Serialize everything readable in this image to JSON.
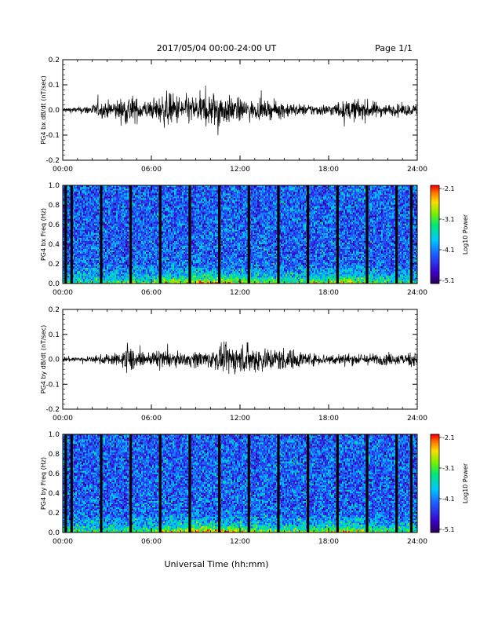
{
  "header": {
    "title": "2017/05/04  00:00-24:00 UT",
    "page": "Page 1/1"
  },
  "footer": {
    "xlabel": "Universal Time (hh:mm)"
  },
  "colors": {
    "line": "#000000",
    "background": "#ffffff",
    "spectrogram_low": "#1f3fb8",
    "spectrogram_high": "#ff0000"
  },
  "chart_data": [
    {
      "type": "line",
      "ylabel": "PG4 bx dB/dt (nT/sec)",
      "x_unit": "hh:mm",
      "xlim": [
        "00:00",
        "24:00"
      ],
      "x_ticks": [
        "00:00",
        "06:00",
        "12:00",
        "18:00",
        "24:00"
      ],
      "ylim": [
        -0.2,
        0.2
      ],
      "y_ticks": [
        "0.2",
        "0.1",
        "0.0",
        "-0.1",
        "-0.2"
      ],
      "series": [
        {
          "x_hours": [
            0,
            1,
            2,
            3,
            4,
            4.5,
            5,
            6,
            7,
            8,
            9,
            10,
            10.5,
            11,
            12,
            13,
            14,
            15,
            16,
            17,
            18,
            19,
            20,
            21,
            22,
            23,
            24
          ],
          "amplitude": [
            0.01,
            0.01,
            0.02,
            0.03,
            0.04,
            0.06,
            0.04,
            0.03,
            0.06,
            0.05,
            0.05,
            0.06,
            0.07,
            0.05,
            0.04,
            0.03,
            0.03,
            0.03,
            0.02,
            0.02,
            0.02,
            0.03,
            0.04,
            0.03,
            0.02,
            0.02,
            0.02
          ]
        }
      ]
    },
    {
      "type": "heatmap",
      "ylabel": "PG4 bx Freq (Hz)",
      "xlim": [
        "00:00",
        "24:00"
      ],
      "x_ticks": [
        "00:00",
        "06:00",
        "12:00",
        "18:00",
        "24:00"
      ],
      "ylim": [
        0.0,
        1.0
      ],
      "y_ticks": [
        "1.0",
        "0.8",
        "0.6",
        "0.4",
        "0.2",
        "0.0"
      ],
      "colorbar": {
        "label": "Log10 Power",
        "range": [
          -5.1,
          -2.1
        ],
        "ticks": [
          "-2.1",
          "-3.1",
          "-4.1",
          "-5.1"
        ]
      },
      "gap_hours": [
        0.2,
        0.6,
        2.6,
        4.6,
        6.6,
        8.6,
        10.6,
        12.6,
        14.6,
        16.6,
        18.6,
        20.6,
        22.6,
        23.6
      ]
    },
    {
      "type": "line",
      "ylabel": "PG4 by dB/dt (nT/sec)",
      "x_unit": "hh:mm",
      "xlim": [
        "00:00",
        "24:00"
      ],
      "x_ticks": [
        "00:00",
        "06:00",
        "12:00",
        "18:00",
        "24:00"
      ],
      "ylim": [
        -0.2,
        0.2
      ],
      "y_ticks": [
        "0.2",
        "0.1",
        "0.0",
        "-0.1",
        "-0.2"
      ],
      "series": [
        {
          "x_hours": [
            0,
            1,
            2,
            3,
            4,
            4.2,
            5,
            6,
            6.5,
            7,
            8,
            9,
            10,
            11,
            12,
            13,
            14,
            15,
            16,
            17,
            18,
            19,
            20,
            21,
            22,
            23,
            24
          ],
          "amplitude": [
            0.01,
            0.01,
            0.01,
            0.02,
            0.02,
            0.08,
            0.02,
            0.02,
            0.04,
            0.03,
            0.02,
            0.03,
            0.03,
            0.05,
            0.05,
            0.05,
            0.04,
            0.04,
            0.03,
            0.02,
            0.02,
            0.02,
            0.02,
            0.02,
            0.02,
            0.02,
            0.03
          ]
        }
      ]
    },
    {
      "type": "heatmap",
      "ylabel": "PG4 by Freq (Hz)",
      "xlim": [
        "00:00",
        "24:00"
      ],
      "x_ticks": [
        "00:00",
        "06:00",
        "12:00",
        "18:00",
        "24:00"
      ],
      "ylim": [
        0.0,
        1.0
      ],
      "y_ticks": [
        "1.0",
        "0.8",
        "0.6",
        "0.4",
        "0.2",
        "0.0"
      ],
      "colorbar": {
        "label": "Log10 Power",
        "range": [
          -5.1,
          -2.1
        ],
        "ticks": [
          "-2.1",
          "-3.1",
          "-4.1",
          "-5.1"
        ]
      },
      "gap_hours": [
        0.2,
        0.6,
        2.6,
        4.6,
        6.6,
        8.6,
        10.6,
        12.6,
        14.6,
        16.6,
        18.6,
        20.6,
        22.6,
        23.6
      ]
    }
  ]
}
